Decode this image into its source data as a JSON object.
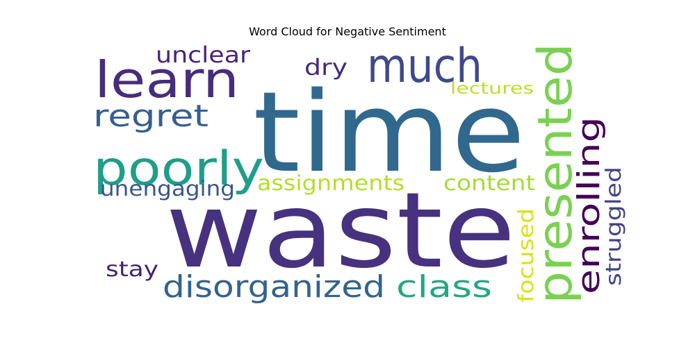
{
  "chart_data": {
    "type": "wordcloud",
    "title": "Word Cloud for Negative Sentiment",
    "words": [
      {
        "text": "time",
        "weight": 1.0,
        "color": "#31688e"
      },
      {
        "text": "waste",
        "weight": 1.0,
        "color": "#46327e"
      },
      {
        "text": "much",
        "weight": 0.5,
        "color": "#3e4a89"
      },
      {
        "text": "learn",
        "weight": 0.5,
        "color": "#472d7b"
      },
      {
        "text": "presented",
        "weight": 0.5,
        "color": "#7ad151"
      },
      {
        "text": "poorly",
        "weight": 0.5,
        "color": "#1f9e89"
      },
      {
        "text": "class",
        "weight": 0.33,
        "color": "#22a884"
      },
      {
        "text": "enrolling",
        "weight": 0.33,
        "color": "#440154"
      },
      {
        "text": "disorganized",
        "weight": 0.33,
        "color": "#33638d"
      },
      {
        "text": "regret",
        "weight": 0.33,
        "color": "#35608d"
      },
      {
        "text": "unclear",
        "weight": 0.25,
        "color": "#482475"
      },
      {
        "text": "unengaging",
        "weight": 0.25,
        "color": "#39568c"
      },
      {
        "text": "assignments",
        "weight": 0.25,
        "color": "#b5de2b"
      },
      {
        "text": "content",
        "weight": 0.25,
        "color": "#a5db36"
      },
      {
        "text": "struggled",
        "weight": 0.25,
        "color": "#414487"
      },
      {
        "text": "focused",
        "weight": 0.25,
        "color": "#d8e219"
      },
      {
        "text": "dry",
        "weight": 0.2,
        "color": "#482878"
      },
      {
        "text": "stay",
        "weight": 0.2,
        "color": "#481f70"
      },
      {
        "text": "lectures",
        "weight": 0.2,
        "color": "#bddf26"
      }
    ]
  }
}
